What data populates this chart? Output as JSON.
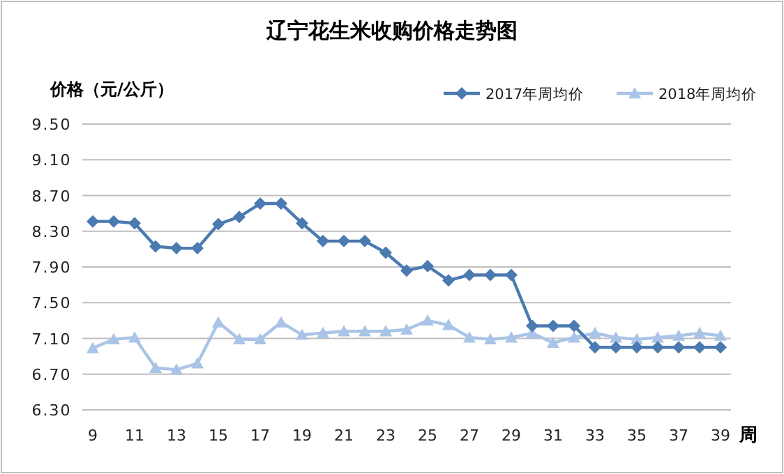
{
  "chart_data": {
    "type": "line",
    "title": "辽宁花生米收购价格走势图",
    "ylabel": "价格（元/公斤）",
    "xlabel": "周",
    "x": [
      9,
      10,
      11,
      12,
      13,
      14,
      15,
      16,
      17,
      18,
      19,
      20,
      21,
      22,
      23,
      24,
      25,
      26,
      27,
      28,
      29,
      30,
      31,
      32,
      33,
      34,
      35,
      36,
      37,
      38,
      39
    ],
    "series": [
      {
        "name": "2017年周均价",
        "color": "#4a7ab0",
        "marker": "diamond",
        "values": [
          8.41,
          8.41,
          8.39,
          8.13,
          8.11,
          8.11,
          8.38,
          8.46,
          8.61,
          8.61,
          8.39,
          8.19,
          8.19,
          8.19,
          8.06,
          7.86,
          7.91,
          7.75,
          7.81,
          7.81,
          7.81,
          7.24,
          7.24,
          7.24,
          7.0,
          7.0,
          7.0,
          7.0,
          7.0,
          7.0,
          7.0
        ]
      },
      {
        "name": "2018年周均价",
        "color": "#a9c4e6",
        "marker": "triangle",
        "values": [
          6.99,
          7.09,
          7.11,
          6.77,
          6.75,
          6.82,
          7.28,
          7.09,
          7.09,
          7.28,
          7.14,
          7.16,
          7.18,
          7.18,
          7.18,
          7.2,
          7.3,
          7.25,
          7.11,
          7.09,
          7.11,
          7.16,
          7.05,
          7.11,
          7.16,
          7.11,
          7.09,
          7.11,
          7.13,
          7.16,
          7.13
        ]
      }
    ],
    "xlim": [
      8.5,
      39.5
    ],
    "xticks": [
      9,
      11,
      13,
      15,
      17,
      19,
      21,
      23,
      25,
      27,
      29,
      31,
      33,
      35,
      37,
      39
    ],
    "ylim": [
      6.3,
      9.5
    ],
    "yticks": [
      {
        "value": 6.3,
        "label": "6.30"
      },
      {
        "value": 6.7,
        "label": "6.70"
      },
      {
        "value": 7.1,
        "label": "7.10"
      },
      {
        "value": 7.5,
        "label": "7.50"
      },
      {
        "value": 7.9,
        "label": "7.90"
      },
      {
        "value": 8.3,
        "label": "8.30"
      },
      {
        "value": 8.7,
        "label": "8.70"
      },
      {
        "value": 9.1,
        "label": "9.10"
      },
      {
        "value": 9.5,
        "label": "9.50"
      }
    ],
    "grid": "y",
    "legend": "top right",
    "line_style": "solid"
  }
}
